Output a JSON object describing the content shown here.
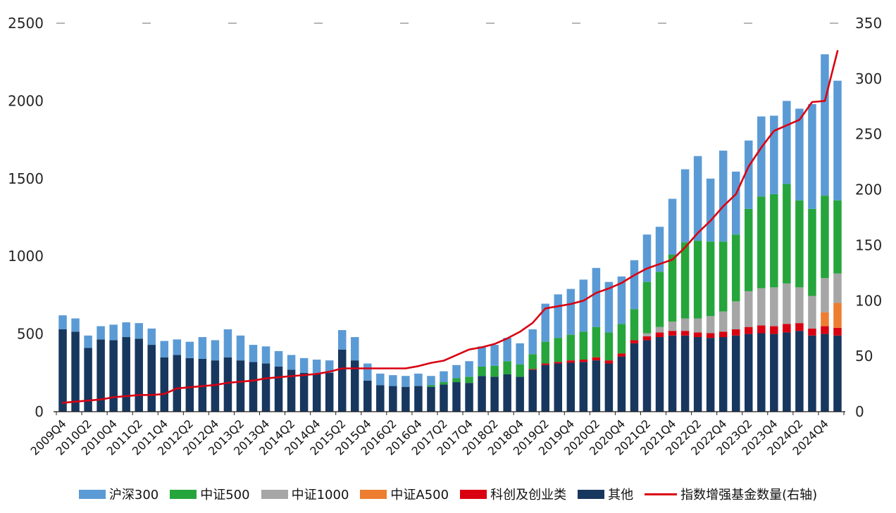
{
  "chart_data": {
    "type": "bar",
    "subtype": "stacked-bar-with-line-dual-axis",
    "title": "",
    "grid": false,
    "legend_position": "bottom",
    "left_axis": {
      "min": 0,
      "max": 2500,
      "ticks": [
        0,
        500,
        1000,
        1500,
        2000,
        2500
      ]
    },
    "right_axis": {
      "min": 0,
      "max": 350,
      "ticks": [
        0,
        50,
        100,
        150,
        200,
        250,
        300,
        350
      ]
    },
    "x_labels_shown_every": 2,
    "categories": [
      "2009Q4",
      "2010Q1",
      "2010Q2",
      "2010Q3",
      "2010Q4",
      "2011Q1",
      "2011Q2",
      "2011Q3",
      "2011Q4",
      "2012Q1",
      "2012Q2",
      "2012Q3",
      "2012Q4",
      "2013Q1",
      "2013Q2",
      "2013Q3",
      "2013Q4",
      "2014Q1",
      "2014Q2",
      "2014Q3",
      "2014Q4",
      "2015Q1",
      "2015Q2",
      "2015Q3",
      "2015Q4",
      "2016Q1",
      "2016Q2",
      "2016Q3",
      "2016Q4",
      "2017Q1",
      "2017Q2",
      "2017Q3",
      "2017Q4",
      "2018Q1",
      "2018Q2",
      "2018Q3",
      "2018Q4",
      "2019Q1",
      "2019Q2",
      "2019Q3",
      "2019Q4",
      "2020Q1",
      "2020Q2",
      "2020Q3",
      "2020Q4",
      "2021Q1",
      "2021Q2",
      "2021Q3",
      "2021Q4",
      "2022Q1",
      "2022Q2",
      "2022Q3",
      "2022Q4",
      "2023Q1",
      "2023Q2",
      "2023Q3",
      "2023Q4",
      "2024Q1",
      "2024Q2",
      "2024Q3",
      "2024Q4",
      "2025Q1"
    ],
    "series": [
      {
        "name": "其他",
        "color": "#17375E",
        "values": [
          530,
          515,
          410,
          465,
          460,
          480,
          470,
          430,
          350,
          365,
          345,
          340,
          330,
          350,
          330,
          320,
          310,
          290,
          270,
          250,
          245,
          250,
          400,
          330,
          200,
          170,
          165,
          160,
          165,
          160,
          175,
          190,
          185,
          230,
          225,
          240,
          225,
          270,
          300,
          310,
          315,
          320,
          330,
          310,
          355,
          440,
          460,
          480,
          490,
          490,
          480,
          475,
          480,
          490,
          500,
          505,
          500,
          510,
          520,
          490,
          500,
          490
        ]
      },
      {
        "name": "科创及创业类",
        "color": "#D90011",
        "values": [
          0,
          0,
          0,
          0,
          0,
          0,
          0,
          0,
          0,
          0,
          0,
          0,
          0,
          0,
          0,
          0,
          0,
          0,
          0,
          0,
          0,
          0,
          0,
          0,
          0,
          0,
          0,
          0,
          0,
          0,
          0,
          0,
          0,
          0,
          0,
          0,
          0,
          5,
          10,
          10,
          15,
          15,
          20,
          20,
          20,
          20,
          25,
          30,
          30,
          30,
          30,
          30,
          35,
          40,
          45,
          50,
          50,
          55,
          50,
          45,
          50,
          50
        ]
      },
      {
        "name": "中证A500",
        "color": "#ED7D31",
        "values": [
          0,
          0,
          0,
          0,
          0,
          0,
          0,
          0,
          0,
          0,
          0,
          0,
          0,
          0,
          0,
          0,
          0,
          0,
          0,
          0,
          0,
          0,
          0,
          0,
          0,
          0,
          0,
          0,
          0,
          0,
          0,
          0,
          0,
          0,
          0,
          0,
          0,
          0,
          0,
          0,
          0,
          0,
          0,
          0,
          0,
          0,
          0,
          0,
          0,
          0,
          0,
          0,
          0,
          0,
          0,
          0,
          0,
          0,
          0,
          0,
          90,
          160
        ]
      },
      {
        "name": "中证1000",
        "color": "#A6A6A6",
        "values": [
          0,
          0,
          0,
          0,
          0,
          0,
          0,
          0,
          0,
          0,
          0,
          0,
          0,
          0,
          0,
          0,
          0,
          0,
          0,
          0,
          0,
          0,
          0,
          0,
          0,
          0,
          0,
          0,
          0,
          0,
          0,
          0,
          0,
          0,
          0,
          0,
          0,
          0,
          0,
          0,
          0,
          0,
          0,
          0,
          0,
          0,
          20,
          35,
          60,
          80,
          90,
          110,
          130,
          180,
          230,
          240,
          250,
          260,
          230,
          210,
          220,
          190
        ]
      },
      {
        "name": "中证500",
        "color": "#25A53C",
        "values": [
          0,
          0,
          0,
          0,
          0,
          0,
          0,
          0,
          0,
          0,
          0,
          0,
          0,
          0,
          0,
          0,
          0,
          0,
          0,
          0,
          0,
          0,
          0,
          0,
          0,
          0,
          0,
          0,
          0,
          10,
          15,
          25,
          40,
          60,
          70,
          85,
          80,
          95,
          140,
          155,
          165,
          180,
          195,
          180,
          190,
          200,
          330,
          355,
          430,
          490,
          500,
          480,
          450,
          430,
          530,
          590,
          600,
          640,
          560,
          560,
          530,
          470
        ]
      },
      {
        "name": "沪深300",
        "color": "#5B9BD5",
        "values": [
          90,
          85,
          80,
          85,
          100,
          95,
          100,
          105,
          105,
          100,
          105,
          140,
          130,
          180,
          160,
          110,
          110,
          100,
          95,
          95,
          90,
          80,
          125,
          150,
          110,
          75,
          70,
          70,
          80,
          60,
          70,
          85,
          100,
          130,
          135,
          150,
          135,
          160,
          245,
          280,
          295,
          335,
          380,
          325,
          305,
          315,
          305,
          290,
          360,
          470,
          545,
          405,
          585,
          405,
          440,
          515,
          505,
          535,
          590,
          675,
          910,
          770
        ]
      }
    ],
    "line": {
      "name": "指数增强基金数量(右轴)",
      "color": "#D90011",
      "axis": "right",
      "values": [
        8,
        9,
        10,
        11,
        13,
        14,
        15,
        15,
        16,
        21,
        22,
        23,
        24,
        26,
        27,
        28,
        30,
        31,
        32,
        33,
        34,
        36,
        39,
        39,
        39,
        39,
        39,
        39,
        41,
        44,
        46,
        51,
        56,
        58,
        61,
        66,
        72,
        80,
        93,
        95,
        97,
        100,
        107,
        111,
        116,
        123,
        129,
        133,
        137,
        148,
        161,
        172,
        185,
        196,
        221,
        238,
        253,
        258,
        263,
        279,
        280,
        325
      ]
    },
    "legend": [
      {
        "label": "沪深300",
        "color": "#5B9BD5",
        "type": "bar"
      },
      {
        "label": "中证500",
        "color": "#25A53C",
        "type": "bar"
      },
      {
        "label": "中证1000",
        "color": "#A6A6A6",
        "type": "bar"
      },
      {
        "label": "中证A500",
        "color": "#ED7D31",
        "type": "bar"
      },
      {
        "label": "科创及创业类",
        "color": "#D90011",
        "type": "bar"
      },
      {
        "label": "其他",
        "color": "#17375E",
        "type": "bar"
      },
      {
        "label": "指数增强基金数量(右轴)",
        "color": "#D90011",
        "type": "line"
      }
    ]
  }
}
